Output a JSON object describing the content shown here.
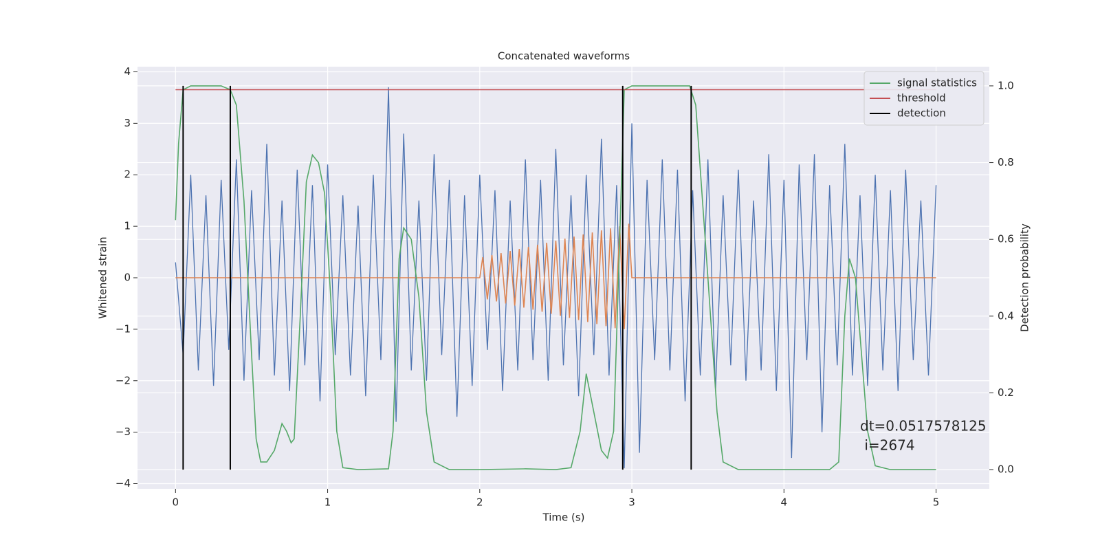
{
  "chart_data": {
    "type": "line",
    "title": "Concatenated waveforms",
    "xlabel": "Time (s)",
    "ylabel": "Whitened strain",
    "y2label": "Detection probability",
    "xlim": [
      -0.25,
      5.35
    ],
    "ylim": [
      -4.1,
      4.1
    ],
    "y2lim": [
      -0.05,
      1.05
    ],
    "xticks": [
      0,
      1,
      2,
      3,
      4,
      5
    ],
    "yticks": [
      {
        "value": -4,
        "label": "−4"
      },
      {
        "value": -3,
        "label": "−3"
      },
      {
        "value": -2,
        "label": "−2"
      },
      {
        "value": -1,
        "label": "−1"
      },
      0,
      1,
      2,
      3,
      4
    ],
    "y2ticks": [
      {
        "value": 0,
        "label": "0.0"
      },
      0.2,
      0.4,
      0.6,
      0.8,
      {
        "value": 1,
        "label": "1.0"
      }
    ],
    "grid": true,
    "legend": "upper right",
    "annotations": [
      "dt=0.0517578125",
      " i=2674"
    ],
    "series": [
      {
        "name": null,
        "color": "#4c72b0",
        "axis": "y",
        "x": [
          0,
          0.05,
          0.1,
          0.15,
          0.2,
          0.25,
          0.3,
          0.35,
          0.4,
          0.45,
          0.5,
          0.55,
          0.6,
          0.65,
          0.7,
          0.75,
          0.8,
          0.85,
          0.9,
          0.95,
          1,
          1.05,
          1.1,
          1.15,
          1.2,
          1.25,
          1.3,
          1.35,
          1.4,
          1.45,
          1.5,
          1.55,
          1.6,
          1.65,
          1.7,
          1.75,
          1.8,
          1.85,
          1.9,
          1.95,
          2,
          2.05,
          2.1,
          2.15,
          2.2,
          2.25,
          2.3,
          2.35,
          2.4,
          2.45,
          2.5,
          2.55,
          2.6,
          2.65,
          2.7,
          2.75,
          2.8,
          2.85,
          2.9,
          2.95,
          3,
          3.05,
          3.1,
          3.15,
          3.2,
          3.25,
          3.3,
          3.35,
          3.4,
          3.45,
          3.5,
          3.55,
          3.6,
          3.65,
          3.7,
          3.75,
          3.8,
          3.85,
          3.9,
          3.95,
          4,
          4.05,
          4.1,
          4.15,
          4.2,
          4.25,
          4.3,
          4.35,
          4.4,
          4.45,
          4.5,
          4.55,
          4.6,
          4.65,
          4.7,
          4.75,
          4.8,
          4.85,
          4.9,
          4.95,
          5
        ],
        "values": [
          0.3,
          -1.5,
          2.0,
          -1.8,
          1.6,
          -2.1,
          1.9,
          -1.4,
          2.3,
          -2.0,
          1.7,
          -1.6,
          2.6,
          -1.9,
          1.5,
          -2.2,
          2.1,
          -1.7,
          1.8,
          -2.4,
          2.2,
          -1.5,
          1.6,
          -1.9,
          1.4,
          -2.3,
          2.0,
          -1.6,
          3.7,
          -2.8,
          2.8,
          -1.8,
          1.5,
          -2.0,
          2.4,
          -1.5,
          1.9,
          -2.7,
          1.6,
          -2.1,
          2.0,
          -1.4,
          1.7,
          -2.2,
          1.5,
          -1.8,
          2.3,
          -1.6,
          1.9,
          -2.0,
          2.5,
          -1.7,
          1.6,
          -2.3,
          2.0,
          -1.5,
          2.7,
          -1.9,
          1.8,
          -3.7,
          3.0,
          -3.4,
          1.9,
          -1.6,
          2.3,
          -1.8,
          2.1,
          -2.4,
          1.7,
          -1.9,
          2.3,
          -2.2,
          1.6,
          -1.7,
          2.1,
          -2.0,
          1.5,
          -1.8,
          2.4,
          -2.2,
          1.9,
          -3.5,
          2.2,
          -1.6,
          2.4,
          -3.0,
          1.8,
          -1.7,
          2.6,
          -1.9,
          1.6,
          -2.1,
          2.0,
          -1.8,
          1.7,
          -2.2,
          2.1,
          -1.6,
          1.5,
          -1.9,
          1.8
        ]
      },
      {
        "name": null,
        "color": "#dd8452",
        "axis": "y",
        "x": [
          0,
          2.0,
          2.02,
          2.05,
          2.08,
          2.11,
          2.14,
          2.17,
          2.2,
          2.23,
          2.26,
          2.29,
          2.32,
          2.35,
          2.38,
          2.41,
          2.44,
          2.47,
          2.5,
          2.53,
          2.56,
          2.59,
          2.62,
          2.65,
          2.68,
          2.71,
          2.74,
          2.77,
          2.8,
          2.83,
          2.86,
          2.89,
          2.92,
          2.95,
          2.98,
          3.0,
          5.0
        ],
        "values": [
          0,
          0,
          0.4,
          -0.42,
          0.44,
          -0.46,
          0.48,
          -0.5,
          0.52,
          -0.54,
          0.56,
          -0.58,
          0.6,
          -0.62,
          0.64,
          -0.66,
          0.68,
          -0.7,
          0.72,
          -0.74,
          0.76,
          -0.78,
          0.8,
          -0.82,
          0.84,
          -0.86,
          0.88,
          -0.9,
          0.92,
          -0.94,
          0.96,
          -0.98,
          1.0,
          -1.0,
          1.05,
          0,
          0
        ]
      },
      {
        "name": "signal statistics",
        "color": "#55a868",
        "axis": "y2",
        "x": [
          0,
          0.02,
          0.05,
          0.1,
          0.3,
          0.36,
          0.4,
          0.45,
          0.5,
          0.53,
          0.56,
          0.6,
          0.65,
          0.7,
          0.73,
          0.76,
          0.78,
          0.82,
          0.86,
          0.9,
          0.94,
          0.98,
          1.02,
          1.06,
          1.1,
          1.2,
          1.4,
          1.43,
          1.47,
          1.5,
          1.55,
          1.6,
          1.65,
          1.7,
          1.8,
          2.0,
          2.3,
          2.5,
          2.6,
          2.66,
          2.7,
          2.75,
          2.8,
          2.84,
          2.88,
          2.92,
          2.95,
          3.0,
          3.38,
          3.42,
          3.5,
          3.56,
          3.6,
          3.7,
          4.3,
          4.36,
          4.4,
          4.43,
          4.47,
          4.5,
          4.55,
          4.6,
          4.7,
          5.0
        ],
        "values": [
          0.65,
          0.85,
          0.99,
          1.0,
          1.0,
          0.99,
          0.95,
          0.7,
          0.3,
          0.08,
          0.02,
          0.02,
          0.05,
          0.12,
          0.1,
          0.07,
          0.08,
          0.4,
          0.75,
          0.82,
          0.8,
          0.72,
          0.45,
          0.1,
          0.005,
          0,
          0.002,
          0.1,
          0.55,
          0.63,
          0.6,
          0.45,
          0.15,
          0.02,
          0,
          0,
          0.002,
          0,
          0.005,
          0.1,
          0.25,
          0.15,
          0.05,
          0.03,
          0.1,
          0.6,
          0.99,
          1.0,
          1.0,
          0.95,
          0.5,
          0.15,
          0.02,
          0,
          0,
          0.02,
          0.4,
          0.55,
          0.5,
          0.35,
          0.1,
          0.01,
          0,
          0
        ]
      },
      {
        "name": "threshold",
        "color": "#c44e52",
        "axis": "y2",
        "x": [
          0,
          5
        ],
        "values": [
          0.99,
          0.99
        ]
      }
    ],
    "detection": {
      "name": "detection",
      "color": "#000000",
      "x": [
        0.05,
        0.36,
        2.94,
        3.39
      ],
      "ymin": 0,
      "ymax": 1
    }
  }
}
